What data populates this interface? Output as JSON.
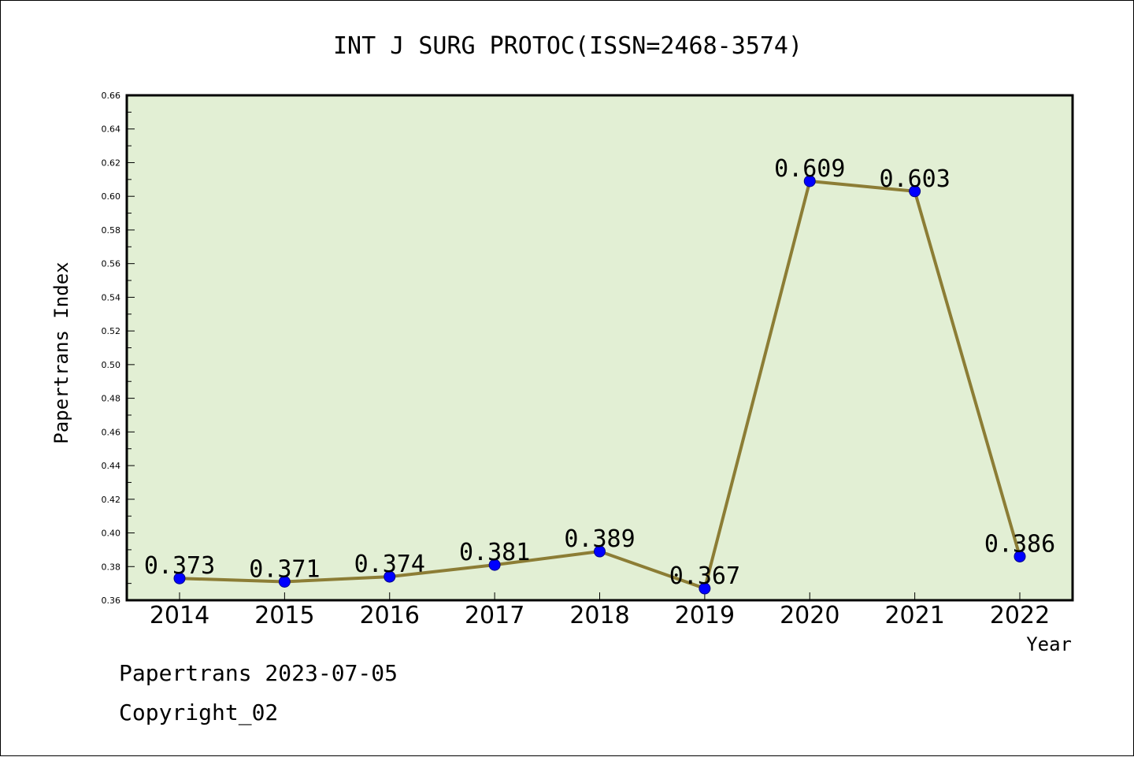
{
  "chart_data": {
    "type": "line",
    "title": "INT J SURG PROTOC(ISSN=2468-3574)",
    "xlabel": "Year",
    "ylabel": "Papertrans Index",
    "categories": [
      "2014",
      "2015",
      "2016",
      "2017",
      "2018",
      "2019",
      "2020",
      "2021",
      "2022"
    ],
    "series": [
      {
        "values": [
          0.373,
          0.371,
          0.374,
          0.381,
          0.389,
          0.367,
          0.609,
          0.603,
          0.386
        ]
      }
    ],
    "data_labels": [
      "0.373",
      "0.371",
      "0.374",
      "0.381",
      "0.389",
      "0.367",
      "0.609",
      "0.603",
      "0.386"
    ],
    "ylim": [
      0.36,
      0.66
    ],
    "yticks": [
      "0.36",
      "0.38",
      "0.40",
      "0.42",
      "0.44",
      "0.46",
      "0.48",
      "0.50",
      "0.52",
      "0.54",
      "0.56",
      "0.58",
      "0.60",
      "0.62",
      "0.64",
      "0.66"
    ],
    "grid": false,
    "colors": {
      "plot_background": "#e2efd4",
      "line": "#8c7d35",
      "marker": "#0000ff"
    }
  },
  "footer": {
    "line1": "Papertrans 2023-07-05",
    "line2": "Copyright_02"
  }
}
